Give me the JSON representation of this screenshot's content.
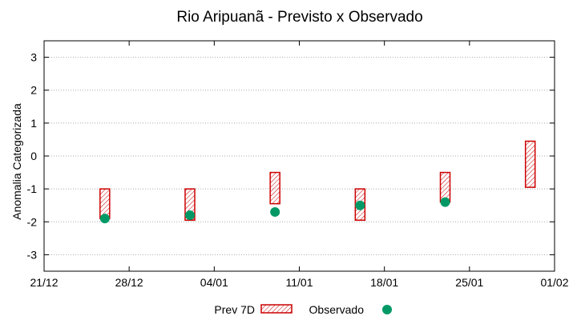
{
  "chart_data": {
    "type": "range-bar-with-points",
    "title": "Rio Aripuanã - Previsto x Observado",
    "xlabel": "",
    "ylabel": "Anomalia Categorizada",
    "ylim": [
      -3.5,
      3.5
    ],
    "yticks": [
      3,
      2,
      1,
      0,
      -1,
      -2,
      -3
    ],
    "ytick_labels": [
      "3",
      "2",
      "1",
      "0",
      "-1",
      "-2",
      "-3"
    ],
    "xlim": [
      0,
      42
    ],
    "xticks": [
      0,
      7,
      14,
      21,
      28,
      35,
      42
    ],
    "xtick_labels": [
      "21/12",
      "28/12",
      "04/01",
      "11/01",
      "18/01",
      "25/01",
      "01/02"
    ],
    "grid": "horizontal dotted",
    "legend_position": "bottom",
    "series": [
      {
        "name": "Prev 7D",
        "kind": "range",
        "color": "#cc0000",
        "x": [
          5,
          12,
          19,
          26,
          33,
          40
        ],
        "low": [
          -1.9,
          -1.95,
          -1.45,
          -1.95,
          -1.4,
          -0.95
        ],
        "high": [
          -1.0,
          -1.0,
          -0.5,
          -1.0,
          -0.5,
          0.45
        ]
      },
      {
        "name": "Observado",
        "kind": "points",
        "color": "#009966",
        "x": [
          5,
          12,
          19,
          26,
          33
        ],
        "y": [
          -1.9,
          -1.8,
          -1.7,
          -1.5,
          -1.4
        ]
      }
    ]
  }
}
